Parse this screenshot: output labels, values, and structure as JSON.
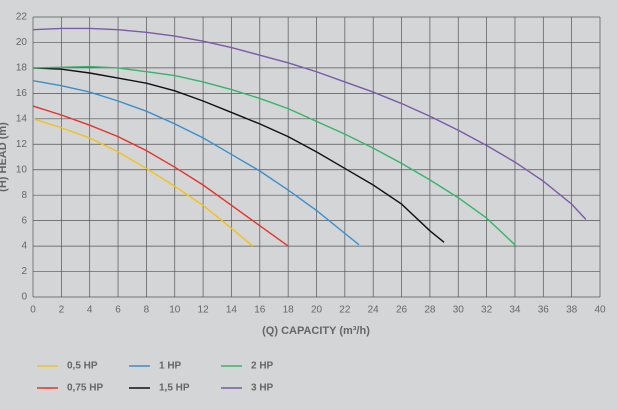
{
  "chart_data": {
    "type": "line",
    "xlabel": "(Q) CAPACITY (m³/h)",
    "ylabel": "(H) HEAD (m)",
    "xlim": [
      0,
      40
    ],
    "xticks": [
      0,
      2,
      4,
      6,
      8,
      10,
      12,
      14,
      16,
      18,
      20,
      22,
      24,
      26,
      28,
      30,
      32,
      34,
      36,
      38,
      40
    ],
    "ylim": [
      0,
      22
    ],
    "yticks": [
      0,
      2,
      4,
      6,
      8,
      10,
      12,
      14,
      16,
      18,
      20,
      22
    ],
    "grid": true,
    "legend": "bottom",
    "series": [
      {
        "name": "0,5 HP",
        "color": "#f2c21b",
        "x": [
          0,
          2,
          4,
          6,
          8,
          10,
          12,
          14,
          15.5
        ],
        "values": [
          14,
          13.3,
          12.5,
          11.4,
          10.1,
          8.7,
          7.2,
          5.4,
          4
        ]
      },
      {
        "name": "0,75 HP",
        "color": "#e3342b",
        "x": [
          0,
          2,
          4,
          6,
          8,
          10,
          12,
          14,
          16,
          18
        ],
        "values": [
          15,
          14.3,
          13.5,
          12.6,
          11.5,
          10.2,
          8.8,
          7.2,
          5.6,
          4
        ]
      },
      {
        "name": "1 HP",
        "color": "#3b8fcb",
        "x": [
          0,
          2,
          4,
          6,
          8,
          10,
          12,
          14,
          16,
          18,
          20,
          22,
          23
        ],
        "values": [
          17,
          16.6,
          16.1,
          15.4,
          14.6,
          13.6,
          12.5,
          11.2,
          9.9,
          8.4,
          6.8,
          5,
          4.1
        ]
      },
      {
        "name": "1,5 HP",
        "color": "#111111",
        "x": [
          0,
          2,
          4,
          6,
          8,
          10,
          12,
          14,
          16,
          18,
          20,
          22,
          24,
          26,
          28,
          29
        ],
        "values": [
          18,
          17.9,
          17.6,
          17.2,
          16.8,
          16.2,
          15.4,
          14.5,
          13.6,
          12.6,
          11.4,
          10.1,
          8.8,
          7.3,
          5.2,
          4.3
        ]
      },
      {
        "name": "2 HP",
        "color": "#35b56a",
        "x": [
          0,
          4,
          6,
          8,
          10,
          12,
          14,
          16,
          18,
          20,
          22,
          24,
          26,
          28,
          30,
          32,
          34
        ],
        "values": [
          18,
          18.1,
          18,
          17.7,
          17.4,
          16.9,
          16.3,
          15.6,
          14.8,
          13.8,
          12.8,
          11.7,
          10.5,
          9.2,
          7.8,
          6.2,
          4.1
        ]
      },
      {
        "name": "3 HP",
        "color": "#7b5aa8",
        "x": [
          0,
          2,
          4,
          6,
          8,
          10,
          12,
          14,
          16,
          18,
          20,
          22,
          24,
          26,
          28,
          30,
          32,
          34,
          36,
          38,
          39
        ],
        "values": [
          21,
          21.1,
          21.1,
          21,
          20.8,
          20.5,
          20.1,
          19.6,
          19,
          18.4,
          17.7,
          16.9,
          16.1,
          15.2,
          14.2,
          13.1,
          11.9,
          10.6,
          9.1,
          7.3,
          6.1
        ]
      }
    ]
  }
}
